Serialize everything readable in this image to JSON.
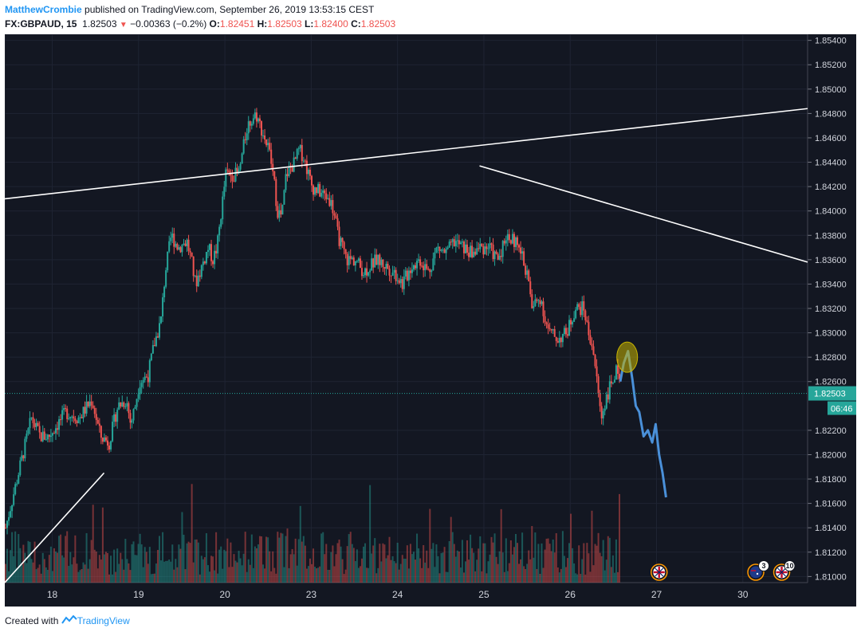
{
  "header": {
    "author": "MatthewCrombie",
    "published_text": "published on TradingView.com, September 26, 2019 13:53:15 CEST",
    "symbol": "FX:GBPAUD, 15",
    "last": "1.82503",
    "change": "−0.00363 (−0.2%)",
    "ohlc": {
      "o_label": "O:",
      "o": "1.82451",
      "h_label": "H:",
      "h": "1.82503",
      "l_label": "L:",
      "l": "1.82400",
      "c_label": "C:",
      "c": "1.82503"
    },
    "down_arrow": "▼"
  },
  "footer": {
    "created_with": "Created with",
    "brand": "TradingView"
  },
  "colors": {
    "background": "#131722",
    "up": "#26a69a",
    "down": "#ef5350",
    "projection": "#4a90d9",
    "trendline": "#ffffff",
    "highlight": "#c8b400",
    "axis_text": "#d1d4dc",
    "price_label": "#26a69a"
  },
  "chart_data": {
    "type": "candlestick",
    "symbol": "FX:GBPAUD",
    "interval": "15",
    "y_ticks": [
      "1.85400",
      "1.85200",
      "1.85000",
      "1.84800",
      "1.84600",
      "1.84400",
      "1.84200",
      "1.84000",
      "1.83800",
      "1.83600",
      "1.83400",
      "1.83200",
      "1.83000",
      "1.82800",
      "1.82600",
      "1.82200",
      "1.82000",
      "1.81800",
      "1.81600",
      "1.81400",
      "1.81200",
      "1.81000"
    ],
    "ylim": [
      1.8095,
      1.8545
    ],
    "x_ticks": [
      {
        "label": "18",
        "t": 0.55
      },
      {
        "label": "19",
        "t": 1.55
      },
      {
        "label": "20",
        "t": 2.55
      },
      {
        "label": "23",
        "t": 3.55
      },
      {
        "label": "24",
        "t": 4.55
      },
      {
        "label": "25",
        "t": 5.55
      },
      {
        "label": "26",
        "t": 6.55
      },
      {
        "label": "27",
        "t": 7.55
      },
      {
        "label": "30",
        "t": 8.55
      }
    ],
    "xlim": [
      0,
      9.3
    ],
    "current_price_label": "1.82503",
    "countdown_label": "06:46",
    "price_path": [
      [
        0.0,
        1.814
      ],
      [
        0.1,
        1.817
      ],
      [
        0.2,
        1.82
      ],
      [
        0.3,
        1.823
      ],
      [
        0.4,
        1.8215
      ],
      [
        0.5,
        1.8215
      ],
      [
        0.6,
        1.8225
      ],
      [
        0.7,
        1.8235
      ],
      [
        0.85,
        1.823
      ],
      [
        1.0,
        1.8245
      ],
      [
        1.1,
        1.8215
      ],
      [
        1.2,
        1.821
      ],
      [
        1.3,
        1.824
      ],
      [
        1.4,
        1.8245
      ],
      [
        1.45,
        1.8225
      ],
      [
        1.5,
        1.824
      ],
      [
        1.55,
        1.826
      ],
      [
        1.65,
        1.8265
      ],
      [
        1.72,
        1.829
      ],
      [
        1.8,
        1.831
      ],
      [
        1.85,
        1.835
      ],
      [
        1.92,
        1.838
      ],
      [
        2.0,
        1.837
      ],
      [
        2.1,
        1.8375
      ],
      [
        2.15,
        1.836
      ],
      [
        2.2,
        1.834
      ],
      [
        2.3,
        1.836
      ],
      [
        2.35,
        1.837
      ],
      [
        2.4,
        1.836
      ],
      [
        2.45,
        1.837
      ],
      [
        2.55,
        1.843
      ],
      [
        2.7,
        1.843
      ],
      [
        2.8,
        1.847
      ],
      [
        2.9,
        1.848
      ],
      [
        3.0,
        1.846
      ],
      [
        3.05,
        1.845
      ],
      [
        3.1,
        1.843
      ],
      [
        3.15,
        1.84
      ],
      [
        3.2,
        1.8395
      ],
      [
        3.25,
        1.843
      ],
      [
        3.35,
        1.844
      ],
      [
        3.4,
        1.845
      ],
      [
        3.45,
        1.8445
      ],
      [
        3.55,
        1.842
      ],
      [
        3.65,
        1.8415
      ],
      [
        3.75,
        1.841
      ],
      [
        3.8,
        1.84
      ],
      [
        3.85,
        1.838
      ],
      [
        3.95,
        1.836
      ],
      [
        4.05,
        1.836
      ],
      [
        4.15,
        1.835
      ],
      [
        4.3,
        1.836
      ],
      [
        4.4,
        1.8355
      ],
      [
        4.5,
        1.835
      ],
      [
        4.6,
        1.834
      ],
      [
        4.7,
        1.8355
      ],
      [
        4.8,
        1.836
      ],
      [
        4.9,
        1.835
      ],
      [
        5.0,
        1.837
      ],
      [
        5.1,
        1.8365
      ],
      [
        5.2,
        1.8375
      ],
      [
        5.3,
        1.837
      ],
      [
        5.4,
        1.8365
      ],
      [
        5.5,
        1.837
      ],
      [
        5.6,
        1.837
      ],
      [
        5.7,
        1.836
      ],
      [
        5.8,
        1.838
      ],
      [
        5.9,
        1.8375
      ],
      [
        6.0,
        1.836
      ],
      [
        6.05,
        1.8345
      ],
      [
        6.1,
        1.832
      ],
      [
        6.2,
        1.833
      ],
      [
        6.25,
        1.831
      ],
      [
        6.3,
        1.83
      ],
      [
        6.4,
        1.8295
      ],
      [
        6.5,
        1.83
      ],
      [
        6.55,
        1.831
      ],
      [
        6.6,
        1.832
      ],
      [
        6.7,
        1.832
      ],
      [
        6.75,
        1.83
      ],
      [
        6.8,
        1.829
      ],
      [
        6.85,
        1.826
      ],
      [
        6.9,
        1.823
      ],
      [
        6.95,
        1.8245
      ],
      [
        7.0,
        1.8255
      ],
      [
        7.05,
        1.8265
      ],
      [
        7.1,
        1.827
      ],
      [
        7.13,
        1.826
      ]
    ],
    "projection_path": [
      [
        7.13,
        1.826
      ],
      [
        7.17,
        1.8275
      ],
      [
        7.22,
        1.8285
      ],
      [
        7.27,
        1.8262
      ],
      [
        7.31,
        1.824
      ],
      [
        7.35,
        1.8235
      ],
      [
        7.4,
        1.8215
      ],
      [
        7.45,
        1.822
      ],
      [
        7.5,
        1.821
      ],
      [
        7.54,
        1.8225
      ],
      [
        7.58,
        1.82
      ],
      [
        7.62,
        1.8185
      ],
      [
        7.66,
        1.8165
      ]
    ],
    "trendlines": [
      [
        [
          0.0,
          1.841
        ],
        [
          9.3,
          1.8484
        ]
      ],
      [
        [
          5.5,
          1.8437
        ],
        [
          9.3,
          1.8358
        ]
      ],
      [
        [
          0.0,
          1.8095
        ],
        [
          1.15,
          1.8185
        ]
      ]
    ],
    "highlight_marker": {
      "t": 7.21,
      "price": 1.828
    },
    "event_markers": [
      {
        "t": 7.58,
        "flag": "uk",
        "count": ""
      },
      {
        "t": 8.7,
        "flag": "au",
        "count": "3"
      },
      {
        "t": 9.0,
        "flag": "uk",
        "count": "10"
      }
    ]
  }
}
